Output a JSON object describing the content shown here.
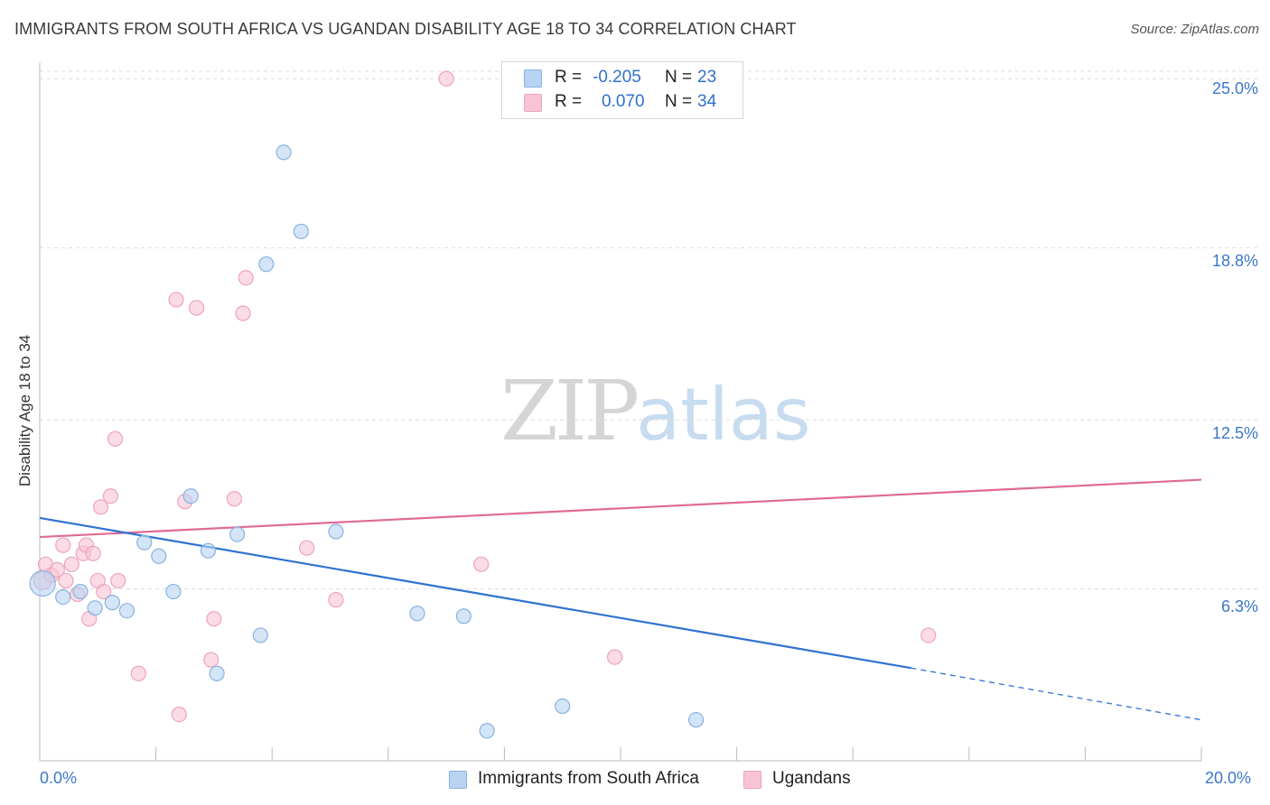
{
  "title": "IMMIGRANTS FROM SOUTH AFRICA VS UGANDAN DISABILITY AGE 18 TO 34 CORRELATION CHART",
  "source": "Source: ZipAtlas.com",
  "watermark": {
    "zip": "ZIP",
    "atlas": "atlas"
  },
  "colors": {
    "blue_fill": "#b8d3f2",
    "blue_stroke": "#8ab2e0",
    "blue_line": "#2f72d0",
    "pink_fill": "#f8c4d4",
    "pink_stroke": "#eea3bb",
    "pink_line": "#e06a94",
    "grid": "#dddddd",
    "axis_text": "#3a78c9"
  },
  "legend": {
    "series1": {
      "r_label": "R =",
      "r_value": "-0.205",
      "n_label": "N =",
      "n_value": "23"
    },
    "series2": {
      "r_label": "R =",
      "r_value": "0.070",
      "n_label": "N =",
      "n_value": "34"
    }
  },
  "chart_data": {
    "type": "scatter",
    "title": "IMMIGRANTS FROM SOUTH AFRICA VS UGANDAN DISABILITY AGE 18 TO 34 CORRELATION CHART",
    "xlabel": "",
    "ylabel": "Disability Age 18 to 34",
    "xlim": [
      0,
      20
    ],
    "ylim": [
      0,
      25.6
    ],
    "x_tick_labels": [
      "0.0%",
      "20.0%"
    ],
    "y_ticks": [
      6.3,
      12.5,
      18.8,
      25.0
    ],
    "y_tick_labels": [
      "6.3%",
      "12.5%",
      "18.8%",
      "25.0%"
    ],
    "grid": true,
    "legend_position": "top-center",
    "series": [
      {
        "name": "Immigrants from South Africa",
        "color": "#b8d3f2",
        "r": -0.205,
        "n": 23,
        "trend": {
          "x0": 0.0,
          "y0": 8.9,
          "x1": 15.0,
          "y1": 3.4,
          "dash_x_end": 20.0,
          "dash_y_end": 1.5
        },
        "points": [
          {
            "x": 0.05,
            "y": 6.5,
            "s": 14
          },
          {
            "x": 0.4,
            "y": 6.0,
            "s": 8
          },
          {
            "x": 0.7,
            "y": 6.2,
            "s": 8
          },
          {
            "x": 0.95,
            "y": 5.6,
            "s": 8
          },
          {
            "x": 1.25,
            "y": 5.8,
            "s": 8
          },
          {
            "x": 1.5,
            "y": 5.5,
            "s": 8
          },
          {
            "x": 1.8,
            "y": 8.0,
            "s": 8
          },
          {
            "x": 2.05,
            "y": 7.5,
            "s": 8
          },
          {
            "x": 2.3,
            "y": 6.2,
            "s": 8
          },
          {
            "x": 2.6,
            "y": 9.7,
            "s": 8
          },
          {
            "x": 2.9,
            "y": 7.7,
            "s": 8
          },
          {
            "x": 3.05,
            "y": 3.2,
            "s": 8
          },
          {
            "x": 3.4,
            "y": 8.3,
            "s": 8
          },
          {
            "x": 3.9,
            "y": 18.2,
            "s": 8
          },
          {
            "x": 3.8,
            "y": 4.6,
            "s": 8
          },
          {
            "x": 4.2,
            "y": 22.3,
            "s": 8
          },
          {
            "x": 4.5,
            "y": 19.4,
            "s": 8
          },
          {
            "x": 5.1,
            "y": 8.4,
            "s": 8
          },
          {
            "x": 6.5,
            "y": 5.4,
            "s": 8
          },
          {
            "x": 7.3,
            "y": 5.3,
            "s": 8
          },
          {
            "x": 7.7,
            "y": 1.1,
            "s": 8
          },
          {
            "x": 9.0,
            "y": 2.0,
            "s": 8
          },
          {
            "x": 11.3,
            "y": 1.5,
            "s": 8
          }
        ]
      },
      {
        "name": "Ugandans",
        "color": "#f8c4d4",
        "r": 0.07,
        "n": 34,
        "trend": {
          "x0": 0.0,
          "y0": 8.2,
          "x1": 20.0,
          "y1": 10.3
        },
        "points": [
          {
            "x": 0.05,
            "y": 6.6,
            "s": 10
          },
          {
            "x": 0.1,
            "y": 7.2,
            "s": 8
          },
          {
            "x": 0.2,
            "y": 6.8,
            "s": 8
          },
          {
            "x": 0.3,
            "y": 7.0,
            "s": 8
          },
          {
            "x": 0.4,
            "y": 7.9,
            "s": 8
          },
          {
            "x": 0.45,
            "y": 6.6,
            "s": 8
          },
          {
            "x": 0.55,
            "y": 7.2,
            "s": 8
          },
          {
            "x": 0.65,
            "y": 6.1,
            "s": 8
          },
          {
            "x": 0.75,
            "y": 7.6,
            "s": 8
          },
          {
            "x": 0.8,
            "y": 7.9,
            "s": 8
          },
          {
            "x": 0.85,
            "y": 5.2,
            "s": 8
          },
          {
            "x": 0.92,
            "y": 7.6,
            "s": 8
          },
          {
            "x": 1.0,
            "y": 6.6,
            "s": 8
          },
          {
            "x": 1.05,
            "y": 9.3,
            "s": 8
          },
          {
            "x": 1.1,
            "y": 6.2,
            "s": 8
          },
          {
            "x": 1.22,
            "y": 9.7,
            "s": 8
          },
          {
            "x": 1.3,
            "y": 11.8,
            "s": 8
          },
          {
            "x": 1.35,
            "y": 6.6,
            "s": 8
          },
          {
            "x": 1.7,
            "y": 3.2,
            "s": 8
          },
          {
            "x": 2.35,
            "y": 16.9,
            "s": 8
          },
          {
            "x": 2.4,
            "y": 1.7,
            "s": 8
          },
          {
            "x": 2.5,
            "y": 9.5,
            "s": 8
          },
          {
            "x": 2.7,
            "y": 16.6,
            "s": 8
          },
          {
            "x": 2.95,
            "y": 3.7,
            "s": 8
          },
          {
            "x": 3.0,
            "y": 5.2,
            "s": 8
          },
          {
            "x": 3.35,
            "y": 9.6,
            "s": 8
          },
          {
            "x": 3.5,
            "y": 16.4,
            "s": 8
          },
          {
            "x": 3.55,
            "y": 17.7,
            "s": 8
          },
          {
            "x": 4.6,
            "y": 7.8,
            "s": 8
          },
          {
            "x": 5.1,
            "y": 5.9,
            "s": 8
          },
          {
            "x": 7.0,
            "y": 25.0,
            "s": 8
          },
          {
            "x": 7.6,
            "y": 7.2,
            "s": 8
          },
          {
            "x": 9.9,
            "y": 3.8,
            "s": 8
          },
          {
            "x": 15.3,
            "y": 4.6,
            "s": 8
          }
        ]
      }
    ]
  }
}
